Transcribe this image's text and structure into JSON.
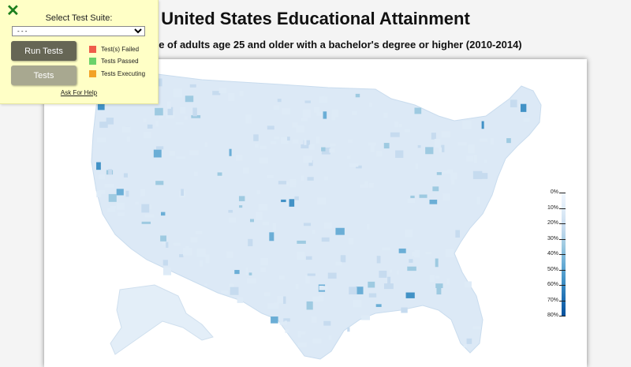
{
  "page": {
    "title": "United States Educational Attainment",
    "subtitle": "Percentage of adults age 25 and older with a bachelor's degree or higher (2010-2014)"
  },
  "legend": {
    "labels": [
      "0%",
      "10%",
      "20%",
      "30%",
      "40%",
      "50%",
      "60%",
      "70%",
      "80%"
    ],
    "colors": [
      "#f0f7ff",
      "#deebf7",
      "#c6dbef",
      "#9ecae1",
      "#6baed6",
      "#4292c6",
      "#2171b5",
      "#08519c"
    ]
  },
  "map": {
    "land_color": "#dce9f6",
    "high_color": "#3a7fbd"
  },
  "panel": {
    "close_label": "✕",
    "select_label": "Select Test Suite:",
    "select_value": "- - -",
    "run_button": "Run Tests",
    "tests_button": "Tests",
    "status": [
      {
        "label": "Test(s) Failed",
        "color": "#ef5c4a"
      },
      {
        "label": "Tests Passed",
        "color": "#6ad26a"
      },
      {
        "label": "Tests Executing",
        "color": "#f2a227"
      }
    ],
    "help_link": "Ask For Help"
  }
}
